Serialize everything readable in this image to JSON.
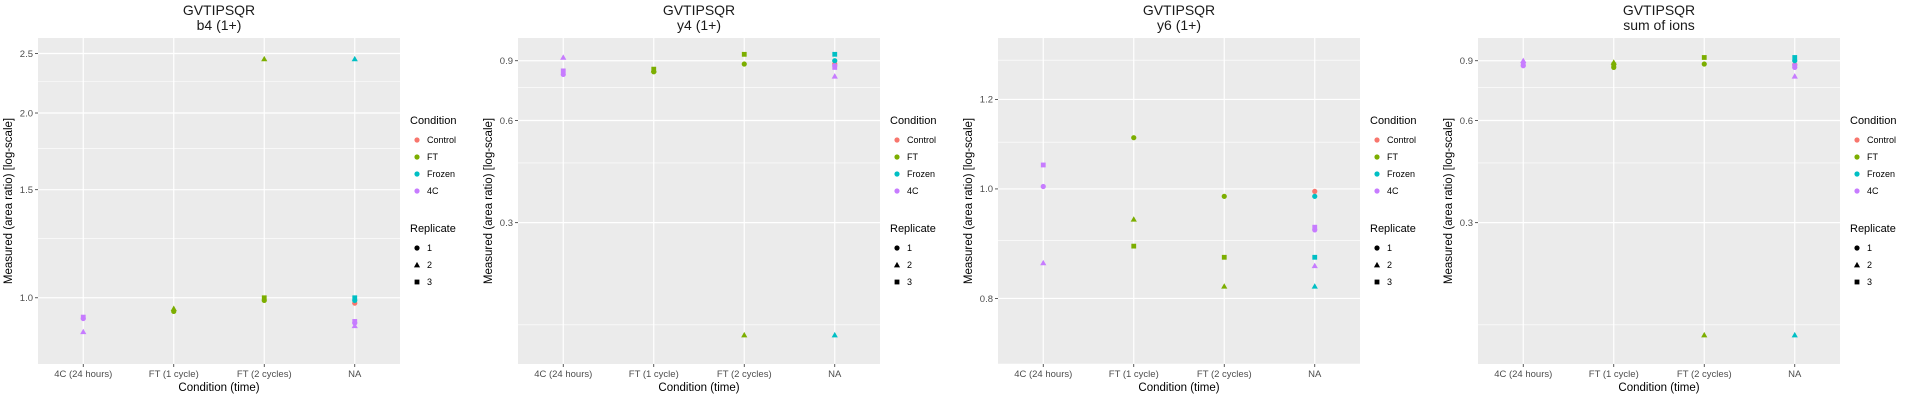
{
  "colors": {
    "Control": "#F8766D",
    "FT": "#7CAE00",
    "Frozen": "#00BFC4",
    "4C": "#C77CFF",
    "panel_bg": "#EBEBEB",
    "grid": "#FFFFFF"
  },
  "legend": {
    "condition_title": "Condition",
    "condition_items": [
      "Control",
      "FT",
      "Frozen",
      "4C"
    ],
    "replicate_title": "Replicate",
    "replicate_items": [
      "1",
      "2",
      "3"
    ]
  },
  "chart_data": [
    {
      "type": "scatter",
      "title": "GVTIPSQR",
      "subtitle": "b4 (1+)",
      "xlabel": "Condition (time)",
      "ylabel": "Measured (area ratio) [log-scale]",
      "scale": "log",
      "categories": [
        "4C (24 hours)",
        "FT (1 cycle)",
        "FT (2 cycles)",
        "NA"
      ],
      "yticks": [
        1.0,
        1.5,
        2.0,
        2.5
      ],
      "ylim": [
        0.78,
        2.65
      ],
      "points": [
        {
          "x": "4C (24 hours)",
          "y": 0.925,
          "condition": "4C",
          "replicate": "1"
        },
        {
          "x": "4C (24 hours)",
          "y": 0.88,
          "condition": "4C",
          "replicate": "2"
        },
        {
          "x": "4C (24 hours)",
          "y": 0.93,
          "condition": "4C",
          "replicate": "3"
        },
        {
          "x": "FT (1 cycle)",
          "y": 0.95,
          "condition": "FT",
          "replicate": "1"
        },
        {
          "x": "FT (1 cycle)",
          "y": 0.96,
          "condition": "FT",
          "replicate": "2"
        },
        {
          "x": "FT (2 cycles)",
          "y": 0.99,
          "condition": "FT",
          "replicate": "1"
        },
        {
          "x": "FT (2 cycles)",
          "y": 2.45,
          "condition": "FT",
          "replicate": "2"
        },
        {
          "x": "FT (2 cycles)",
          "y": 1.0,
          "condition": "FT",
          "replicate": "3"
        },
        {
          "x": "NA",
          "y": 0.98,
          "condition": "Control",
          "replicate": "1"
        },
        {
          "x": "NA",
          "y": 0.99,
          "condition": "Frozen",
          "replicate": "1"
        },
        {
          "x": "NA",
          "y": 2.45,
          "condition": "Frozen",
          "replicate": "2"
        },
        {
          "x": "NA",
          "y": 1.0,
          "condition": "Frozen",
          "replicate": "3"
        },
        {
          "x": "NA",
          "y": 0.91,
          "condition": "4C",
          "replicate": "1"
        },
        {
          "x": "NA",
          "y": 0.9,
          "condition": "4C",
          "replicate": "2"
        },
        {
          "x": "NA",
          "y": 0.915,
          "condition": "4C",
          "replicate": "3"
        }
      ]
    },
    {
      "type": "scatter",
      "title": "GVTIPSQR",
      "subtitle": "y4 (1+)",
      "xlabel": "Condition (time)",
      "ylabel": "Measured (area ratio) [log-scale]",
      "scale": "log",
      "categories": [
        "4C (24 hours)",
        "FT (1 cycle)",
        "FT (2 cycles)",
        "NA"
      ],
      "yticks": [
        0.3,
        0.6,
        0.9
      ],
      "ylim": [
        0.115,
        1.05
      ],
      "points": [
        {
          "x": "4C (24 hours)",
          "y": 0.82,
          "condition": "4C",
          "replicate": "1"
        },
        {
          "x": "4C (24 hours)",
          "y": 0.92,
          "condition": "4C",
          "replicate": "2"
        },
        {
          "x": "4C (24 hours)",
          "y": 0.84,
          "condition": "4C",
          "replicate": "3"
        },
        {
          "x": "FT (1 cycle)",
          "y": 0.835,
          "condition": "FT",
          "replicate": "1"
        },
        {
          "x": "FT (1 cycle)",
          "y": 0.845,
          "condition": "FT",
          "replicate": "2"
        },
        {
          "x": "FT (1 cycle)",
          "y": 0.85,
          "condition": "FT",
          "replicate": "3"
        },
        {
          "x": "FT (2 cycles)",
          "y": 0.88,
          "condition": "FT",
          "replicate": "1"
        },
        {
          "x": "FT (2 cycles)",
          "y": 0.14,
          "condition": "FT",
          "replicate": "2"
        },
        {
          "x": "FT (2 cycles)",
          "y": 0.94,
          "condition": "FT",
          "replicate": "3"
        },
        {
          "x": "NA",
          "y": 0.88,
          "condition": "Control",
          "replicate": "1"
        },
        {
          "x": "NA",
          "y": 0.9,
          "condition": "Frozen",
          "replicate": "1"
        },
        {
          "x": "NA",
          "y": 0.14,
          "condition": "Frozen",
          "replicate": "2"
        },
        {
          "x": "NA",
          "y": 0.94,
          "condition": "Frozen",
          "replicate": "3"
        },
        {
          "x": "NA",
          "y": 0.87,
          "condition": "4C",
          "replicate": "1"
        },
        {
          "x": "NA",
          "y": 0.81,
          "condition": "4C",
          "replicate": "2"
        },
        {
          "x": "NA",
          "y": 0.86,
          "condition": "4C",
          "replicate": "3"
        }
      ]
    },
    {
      "type": "scatter",
      "title": "GVTIPSQR",
      "subtitle": "y6 (1+)",
      "xlabel": "Condition (time)",
      "ylabel": "Measured (area ratio) [log-scale]",
      "scale": "log",
      "categories": [
        "4C (24 hours)",
        "FT (1 cycle)",
        "FT (2 cycles)",
        "NA"
      ],
      "yticks": [
        0.8,
        1.0,
        1.2
      ],
      "ylim": [
        0.7,
        1.36
      ],
      "points": [
        {
          "x": "4C (24 hours)",
          "y": 1.005,
          "condition": "4C",
          "replicate": "1"
        },
        {
          "x": "4C (24 hours)",
          "y": 0.86,
          "condition": "4C",
          "replicate": "2"
        },
        {
          "x": "4C (24 hours)",
          "y": 1.05,
          "condition": "4C",
          "replicate": "3"
        },
        {
          "x": "FT (1 cycle)",
          "y": 1.11,
          "condition": "FT",
          "replicate": "1"
        },
        {
          "x": "FT (1 cycle)",
          "y": 0.94,
          "condition": "FT",
          "replicate": "2"
        },
        {
          "x": "FT (1 cycle)",
          "y": 0.89,
          "condition": "FT",
          "replicate": "3"
        },
        {
          "x": "FT (2 cycles)",
          "y": 0.985,
          "condition": "FT",
          "replicate": "1"
        },
        {
          "x": "FT (2 cycles)",
          "y": 0.82,
          "condition": "FT",
          "replicate": "2"
        },
        {
          "x": "FT (2 cycles)",
          "y": 0.87,
          "condition": "FT",
          "replicate": "3"
        },
        {
          "x": "NA",
          "y": 0.995,
          "condition": "Control",
          "replicate": "1"
        },
        {
          "x": "NA",
          "y": 0.985,
          "condition": "Frozen",
          "replicate": "1"
        },
        {
          "x": "NA",
          "y": 0.82,
          "condition": "Frozen",
          "replicate": "2"
        },
        {
          "x": "NA",
          "y": 0.87,
          "condition": "Frozen",
          "replicate": "3"
        },
        {
          "x": "NA",
          "y": 0.92,
          "condition": "4C",
          "replicate": "1"
        },
        {
          "x": "NA",
          "y": 0.855,
          "condition": "4C",
          "replicate": "2"
        },
        {
          "x": "NA",
          "y": 0.925,
          "condition": "4C",
          "replicate": "3"
        }
      ]
    },
    {
      "type": "scatter",
      "title": "GVTIPSQR",
      "subtitle": "sum of ions",
      "xlabel": "Condition (time)",
      "ylabel": "Measured (area ratio) [log-scale]",
      "scale": "log",
      "categories": [
        "4C (24 hours)",
        "FT (1 cycle)",
        "FT (2 cycles)",
        "NA"
      ],
      "yticks": [
        0.3,
        0.6,
        0.9
      ],
      "ylim": [
        0.115,
        1.05
      ],
      "points": [
        {
          "x": "4C (24 hours)",
          "y": 0.87,
          "condition": "4C",
          "replicate": "1"
        },
        {
          "x": "4C (24 hours)",
          "y": 0.9,
          "condition": "4C",
          "replicate": "2"
        },
        {
          "x": "4C (24 hours)",
          "y": 0.88,
          "condition": "4C",
          "replicate": "3"
        },
        {
          "x": "FT (1 cycle)",
          "y": 0.86,
          "condition": "FT",
          "replicate": "1"
        },
        {
          "x": "FT (1 cycle)",
          "y": 0.89,
          "condition": "FT",
          "replicate": "2"
        },
        {
          "x": "FT (1 cycle)",
          "y": 0.875,
          "condition": "FT",
          "replicate": "3"
        },
        {
          "x": "FT (2 cycles)",
          "y": 0.88,
          "condition": "FT",
          "replicate": "1"
        },
        {
          "x": "FT (2 cycles)",
          "y": 0.14,
          "condition": "FT",
          "replicate": "2"
        },
        {
          "x": "FT (2 cycles)",
          "y": 0.92,
          "condition": "FT",
          "replicate": "3"
        },
        {
          "x": "NA",
          "y": 0.875,
          "condition": "Control",
          "replicate": "1"
        },
        {
          "x": "NA",
          "y": 0.9,
          "condition": "Frozen",
          "replicate": "1"
        },
        {
          "x": "NA",
          "y": 0.14,
          "condition": "Frozen",
          "replicate": "2"
        },
        {
          "x": "NA",
          "y": 0.92,
          "condition": "Frozen",
          "replicate": "3"
        },
        {
          "x": "NA",
          "y": 0.86,
          "condition": "4C",
          "replicate": "1"
        },
        {
          "x": "NA",
          "y": 0.81,
          "condition": "4C",
          "replicate": "2"
        },
        {
          "x": "NA",
          "y": 0.87,
          "condition": "4C",
          "replicate": "3"
        }
      ]
    }
  ]
}
